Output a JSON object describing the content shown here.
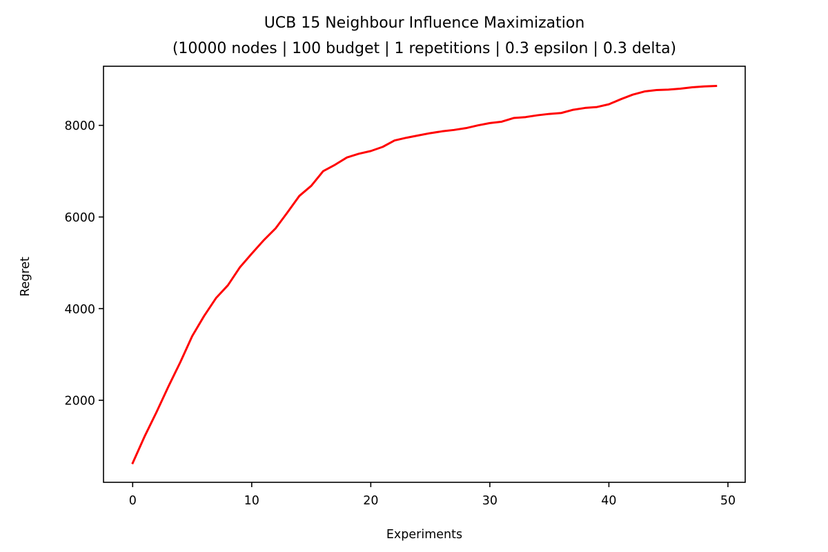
{
  "chart_data": {
    "type": "line",
    "title": "UCB 15 Neighbour Influence Maximization",
    "subtitle": "(10000 nodes | 100 budget | 1 repetitions | 0.3 epsilon | 0.3 delta)",
    "xlabel": "Experiments",
    "ylabel": "Regret",
    "xlim": [
      -2.45,
      51.45
    ],
    "ylim": [
      210,
      9290
    ],
    "x_ticks": [
      0,
      10,
      20,
      30,
      40,
      50
    ],
    "y_ticks": [
      2000,
      4000,
      6000,
      8000
    ],
    "grid": false,
    "legend": "none",
    "series": [
      {
        "color": "#ff0000",
        "x": [
          0,
          1,
          2,
          3,
          4,
          5,
          6,
          7,
          8,
          9,
          10,
          11,
          12,
          13,
          14,
          15,
          16,
          17,
          18,
          19,
          20,
          21,
          22,
          23,
          24,
          25,
          26,
          27,
          28,
          29,
          30,
          31,
          32,
          33,
          34,
          35,
          36,
          37,
          38,
          39,
          40,
          41,
          42,
          43,
          44,
          45,
          46,
          47,
          48,
          49
        ],
        "y": [
          630,
          1210,
          1740,
          2300,
          2830,
          3400,
          3840,
          4230,
          4510,
          4900,
          5200,
          5490,
          5750,
          6100,
          6460,
          6680,
          7000,
          7140,
          7300,
          7380,
          7440,
          7530,
          7670,
          7730,
          7780,
          7830,
          7870,
          7900,
          7940,
          8000,
          8050,
          8080,
          8160,
          8180,
          8220,
          8250,
          8270,
          8340,
          8380,
          8400,
          8460,
          8570,
          8670,
          8740,
          8770,
          8780,
          8800,
          8830,
          8850,
          8860
        ]
      }
    ]
  }
}
